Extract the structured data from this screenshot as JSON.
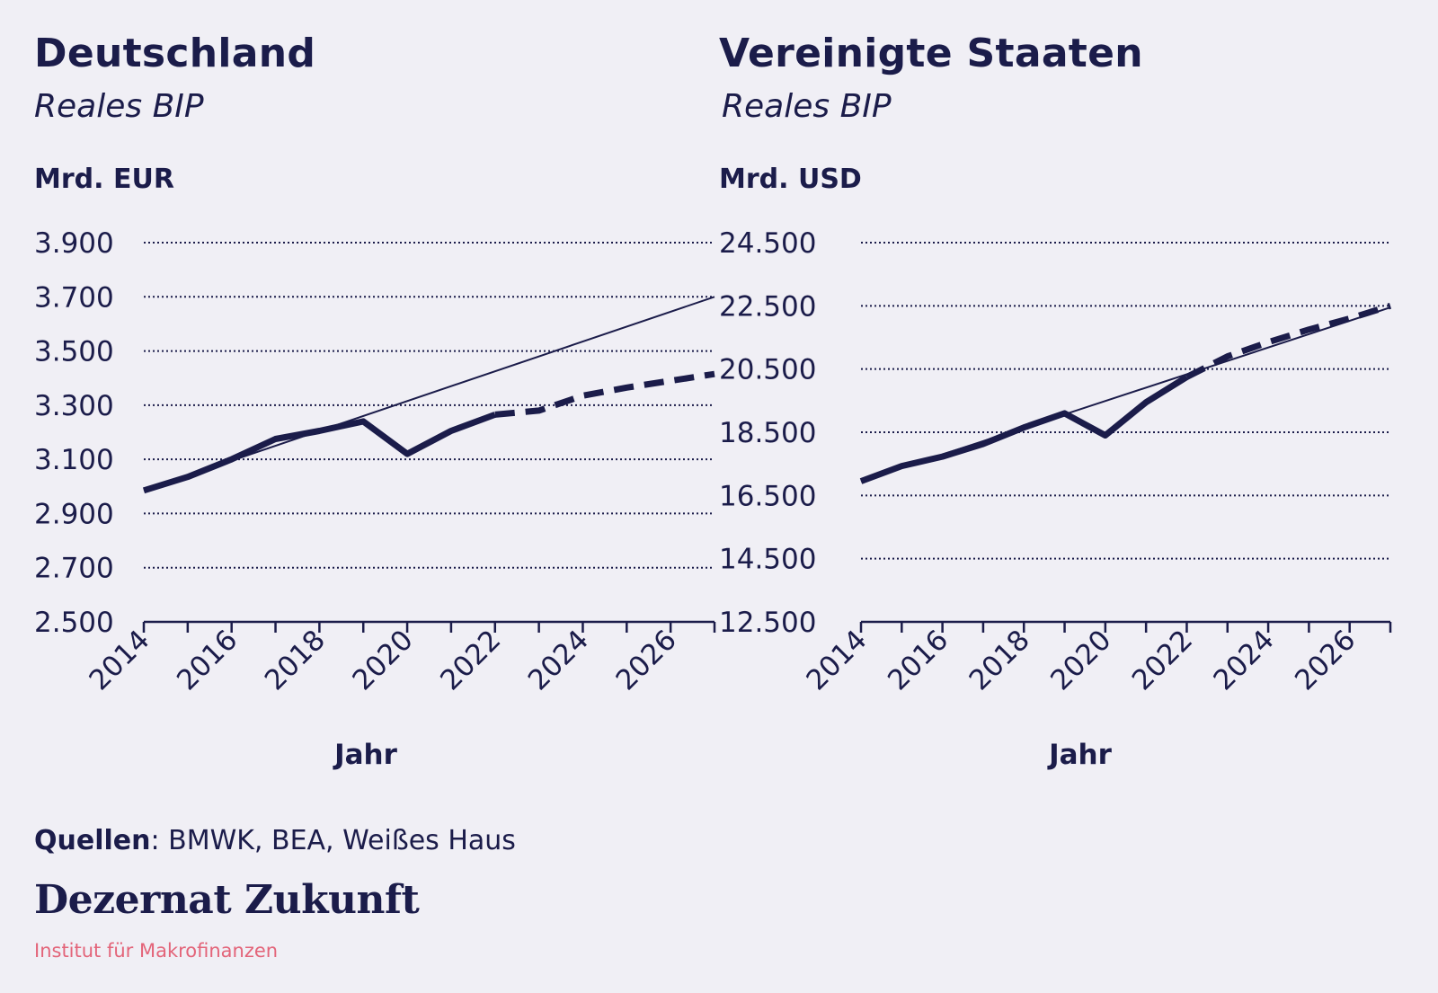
{
  "chart_data": [
    {
      "type": "line",
      "title": "Deutschland",
      "subtitle": "Reales BIP",
      "ylabel": "Mrd. EUR",
      "xlabel": "Jahr",
      "xlim": [
        2014,
        2027
      ],
      "ylim": [
        2500,
        3900
      ],
      "yticks": [
        2500,
        2700,
        2900,
        3100,
        3300,
        3500,
        3700,
        3900
      ],
      "ytick_labels": [
        "2.500",
        "2.700",
        "2.900",
        "3.100",
        "3.300",
        "3.500",
        "3.700",
        "3.900"
      ],
      "xticks": [
        2014,
        2016,
        2018,
        2020,
        2022,
        2024,
        2026
      ],
      "xtick_labels": [
        "2014",
        "2016",
        "2018",
        "2020",
        "2022",
        "2024",
        "2026"
      ],
      "grid": true,
      "series": [
        {
          "style": "solid-thick",
          "x": [
            2014,
            2015,
            2016,
            2017,
            2018,
            2019,
            2020,
            2021,
            2022
          ],
          "y": [
            2985,
            3035,
            3100,
            3175,
            3205,
            3240,
            3120,
            3205,
            3265
          ]
        },
        {
          "style": "dashed-thick",
          "x": [
            2022,
            2023,
            2024,
            2025,
            2026,
            2027
          ],
          "y": [
            3265,
            3280,
            3335,
            3365,
            3390,
            3415
          ]
        },
        {
          "style": "trend-thin",
          "x": [
            2014,
            2027
          ],
          "y": [
            2985,
            3700
          ]
        }
      ]
    },
    {
      "type": "line",
      "title": "Vereinigte Staaten",
      "subtitle": "Reales BIP",
      "ylabel": "Mrd. USD",
      "xlabel": "Jahr",
      "xlim": [
        2014,
        2027
      ],
      "ylim": [
        12500,
        24500
      ],
      "yticks": [
        12500,
        14500,
        16500,
        18500,
        20500,
        22500,
        24500
      ],
      "ytick_labels": [
        "12.500",
        "14.500",
        "16.500",
        "18.500",
        "20.500",
        "22.500",
        "24.500"
      ],
      "xticks": [
        2014,
        2016,
        2018,
        2020,
        2022,
        2024,
        2026
      ],
      "xtick_labels": [
        "2014",
        "2016",
        "2018",
        "2020",
        "2022",
        "2024",
        "2026"
      ],
      "grid": true,
      "series": [
        {
          "style": "solid-thick",
          "x": [
            2014,
            2015,
            2016,
            2017,
            2018,
            2019,
            2020,
            2021,
            2022
          ],
          "y": [
            16950,
            17430,
            17730,
            18130,
            18650,
            19100,
            18400,
            19450,
            20250
          ]
        },
        {
          "style": "dashed-thick",
          "x": [
            2022,
            2023,
            2024,
            2025,
            2026,
            2027
          ],
          "y": [
            20250,
            20900,
            21350,
            21750,
            22100,
            22500
          ]
        },
        {
          "style": "trend-thin",
          "x": [
            2014,
            2027
          ],
          "y": [
            16950,
            22450
          ]
        }
      ]
    }
  ],
  "footer": {
    "sources_label": "Quellen",
    "sources_text": ": BMWK, BEA, Weißes Haus"
  },
  "brand": {
    "name": "Dezernat Zukunft",
    "tagline": "Institut für Makrofinanzen"
  },
  "colors": {
    "ink": "#1b1c4a",
    "background": "#f0eff5",
    "accent": "#e36479"
  }
}
